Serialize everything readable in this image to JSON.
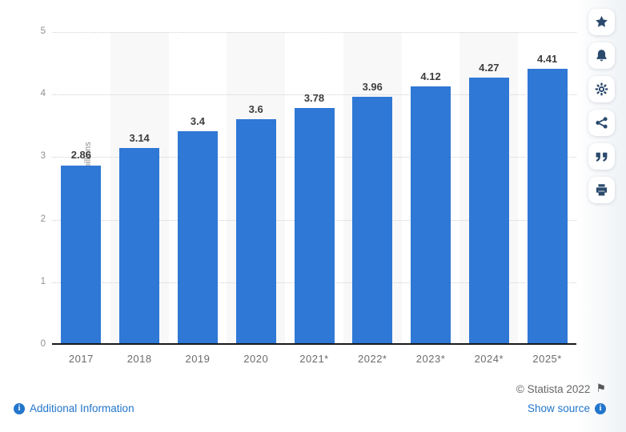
{
  "chart_data": {
    "type": "bar",
    "title": "",
    "categories": [
      "2017",
      "2018",
      "2019",
      "2020",
      "2021*",
      "2022*",
      "2023*",
      "2024*",
      "2025*"
    ],
    "values": [
      2.86,
      3.14,
      3.4,
      3.6,
      3.78,
      3.96,
      4.12,
      4.27,
      4.41
    ],
    "value_labels": [
      "2.86",
      "3.14",
      "3.4",
      "3.6",
      "3.78",
      "3.96",
      "4.12",
      "4.27",
      "4.41"
    ],
    "xlabel": "",
    "ylabel": "Number of users in billions",
    "ylim": [
      0,
      5
    ],
    "yticks": [
      0,
      1,
      2,
      3,
      4,
      5
    ],
    "grid": "horizontal-dotted",
    "legend": "none",
    "bar_color": "#2f78d5",
    "band_color": "#f8f8f8",
    "shaded_columns": [
      1,
      3,
      5,
      7
    ]
  },
  "sidebar": {
    "buttons": [
      {
        "name": "favorite",
        "icon": "star-icon"
      },
      {
        "name": "notifications",
        "icon": "bell-icon"
      },
      {
        "name": "settings",
        "icon": "gear-icon"
      },
      {
        "name": "share",
        "icon": "share-icon"
      },
      {
        "name": "cite",
        "icon": "quote-icon"
      },
      {
        "name": "print",
        "icon": "print-icon"
      }
    ],
    "icon_color": "#2b4a6d"
  },
  "footer": {
    "additional_information_label": "Additional Information",
    "copyright_text": "© Statista 2022",
    "show_source_label": "Show source"
  },
  "icons": {
    "info_glyph": "i",
    "flag_glyph": "⚑"
  },
  "colors": {
    "link": "#2276cc",
    "bar": "#2f78d5",
    "axis_labels": "#8f8f8f",
    "value_labels": "#3d3d3d",
    "copyright": "#666666"
  }
}
